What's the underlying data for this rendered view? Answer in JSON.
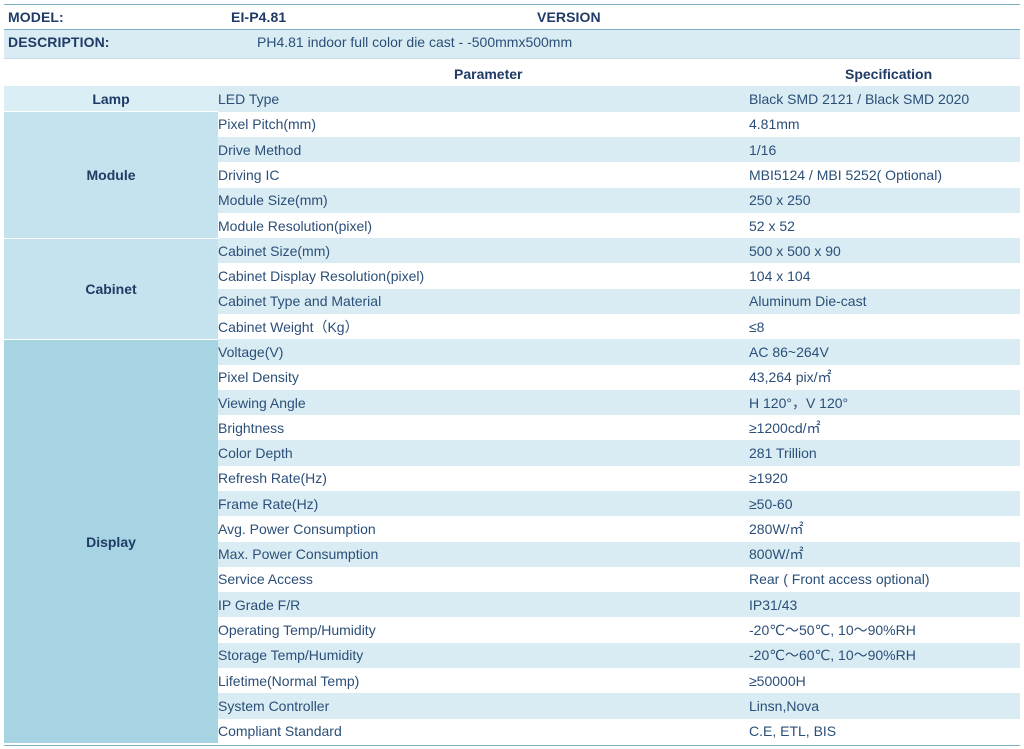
{
  "header": {
    "model_label": "MODEL:",
    "model_value": "EI-P4.81",
    "version_label": "VERSION",
    "description_label": "DESCRIPTION:",
    "description_value": "PH4.81 indoor full color   die cast - -500mmx500mm"
  },
  "columns": {
    "parameter": "Parameter",
    "specification": "Specification"
  },
  "groups": [
    {
      "name": "Lamp",
      "rows": [
        {
          "parameter": "LED Type",
          "specification": "Black   SMD 2121 / Black SMD 2020"
        }
      ]
    },
    {
      "name": "Module",
      "rows": [
        {
          "parameter": "Pixel Pitch(mm)",
          "specification": "4.81mm"
        },
        {
          "parameter": "Drive Method",
          "specification": "1/16"
        },
        {
          "parameter": "Driving IC",
          "specification": "MBI5124 /   MBI 5252( Optional)"
        },
        {
          "parameter": "Module Size(mm)",
          "specification": "250 x 250"
        },
        {
          "parameter": "Module Resolution(pixel)",
          "specification": "52 x 52"
        }
      ]
    },
    {
      "name": "Cabinet",
      "rows": [
        {
          "parameter": "Cabinet Size(mm)",
          "specification": "500 x 500 x 90"
        },
        {
          "parameter": "Cabinet Display Resolution(pixel)",
          "specification": "104 x 104"
        },
        {
          "parameter": "Cabinet Type and Material",
          "specification": "Aluminum Die-cast"
        },
        {
          "parameter": "Cabinet Weight（Kg）",
          "specification": "≤8"
        }
      ]
    },
    {
      "name": "Display",
      "rows": [
        {
          "parameter": "Voltage(V)",
          "specification": "AC   86~264V"
        },
        {
          "parameter": "Pixel Density",
          "specification": "43,264 pix/㎡"
        },
        {
          "parameter": "Viewing Angle",
          "specification": "H 120°，V 120°"
        },
        {
          "parameter": "Brightness",
          "specification": "≥1200cd/㎡"
        },
        {
          "parameter": "Color Depth",
          "specification": "281   Trillion"
        },
        {
          "parameter": "Refresh Rate(Hz)",
          "specification": "≥1920"
        },
        {
          "parameter": "Frame Rate(Hz)",
          "specification": "≥50-60"
        },
        {
          "parameter": "Avg. Power Consumption",
          "specification": "280W/㎡"
        },
        {
          "parameter": "Max. Power Consumption",
          "specification": "800W/㎡"
        },
        {
          "parameter": "Service Access",
          "specification": "Rear (   Front access optional)"
        },
        {
          "parameter": "IP Grade F/R",
          "specification": "IP31/43"
        },
        {
          "parameter": "Operating Temp/Humidity",
          "specification": "-20℃～50℃, 10～90%RH"
        },
        {
          "parameter": "Storage Temp/Humidity",
          "specification": "-20℃～60℃, 10～90%RH"
        },
        {
          "parameter": "Lifetime(Normal Temp)",
          "specification": "≥50000H"
        },
        {
          "parameter": "System Controller",
          "specification": "Linsn,Nova"
        },
        {
          "parameter": "Compliant Standard",
          "specification": "C.E, ETL, BIS"
        }
      ]
    }
  ]
}
